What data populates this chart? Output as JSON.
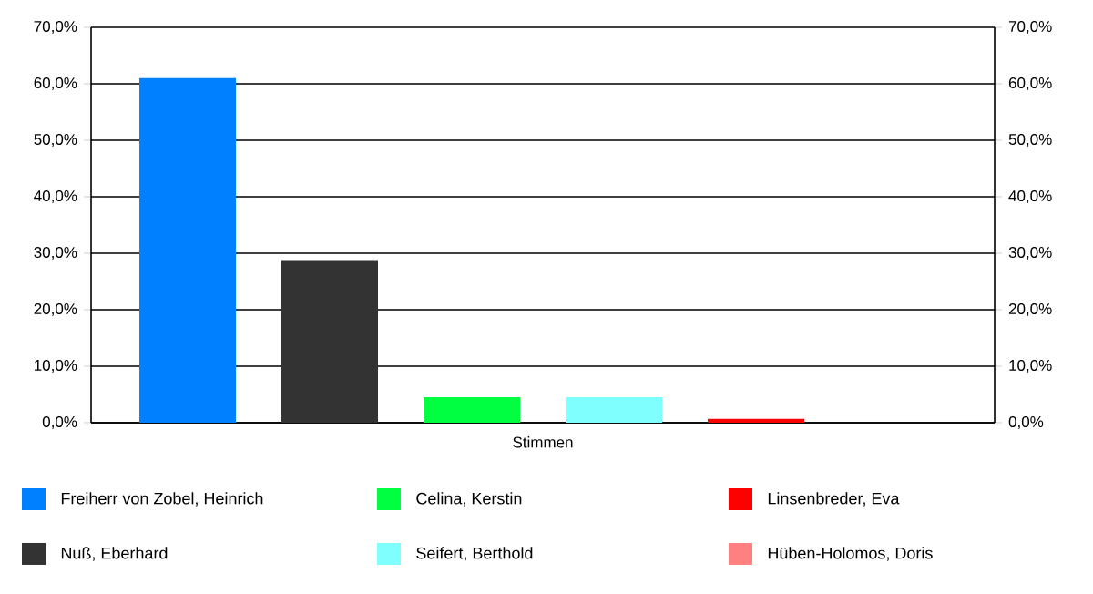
{
  "chart_data": {
    "type": "bar",
    "categories": [
      "Stimmen"
    ],
    "series": [
      {
        "name": "Freiherr von Zobel, Heinrich",
        "color": "#0080ff",
        "values": [
          61.0
        ]
      },
      {
        "name": "Nuß, Eberhard",
        "color": "#333333",
        "values": [
          28.8
        ]
      },
      {
        "name": "Celina, Kerstin",
        "color": "#00ff40",
        "values": [
          4.5
        ]
      },
      {
        "name": "Seifert, Berthold",
        "color": "#80ffff",
        "values": [
          4.5
        ]
      },
      {
        "name": "Linsenbreder, Eva",
        "color": "#ff0000",
        "values": [
          0.7
        ]
      },
      {
        "name": "Hüben-Holomos, Doris",
        "color": "#ff8080",
        "values": [
          0
        ]
      }
    ],
    "ylim": [
      0,
      70
    ],
    "yticks": [
      {
        "value": 0,
        "label": "0,0%"
      },
      {
        "value": 10,
        "label": "10,0%"
      },
      {
        "value": 20,
        "label": "20,0%"
      },
      {
        "value": 30,
        "label": "30,0%"
      },
      {
        "value": 40,
        "label": "40,0%"
      },
      {
        "value": 50,
        "label": "50,0%"
      },
      {
        "value": 60,
        "label": "60,0%"
      },
      {
        "value": 70,
        "label": "70,0%"
      }
    ],
    "grid": "y",
    "legend": "bottom"
  }
}
